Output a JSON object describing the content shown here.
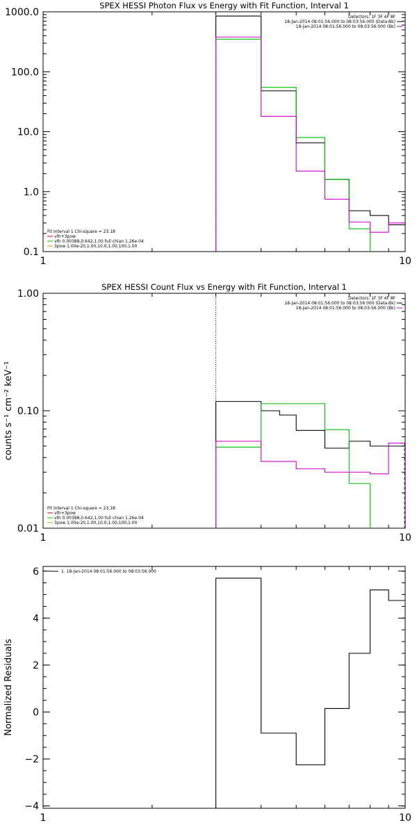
{
  "chart_data": [
    {
      "type": "line",
      "title": "SPEX HESSI Photon Flux vs Energy with Fit Function, Interval 1",
      "xlabel": "",
      "ylabel": "",
      "xscale": "log",
      "yscale": "log",
      "xlim": [
        1,
        10
      ],
      "ylim": [
        0.1,
        1000
      ],
      "xticks": [
        {
          "v": 1,
          "label": "1"
        },
        {
          "v": 10,
          "label": "10"
        }
      ],
      "yticks": [
        {
          "v": 0.1,
          "label": "0.1"
        },
        {
          "v": 1,
          "label": "1.0"
        },
        {
          "v": 10,
          "label": "10.0"
        },
        {
          "v": 100,
          "label": "100.0"
        },
        {
          "v": 1000,
          "label": "1000.0"
        }
      ],
      "legend_top": [
        {
          "text": "Detectors: 1F 3F 4F 8F",
          "color": null
        },
        {
          "text": "18-Jan-2014 08:01:56.000 to 08:03:56.000 (Data-Bk)",
          "color": "#000000"
        },
        {
          "text": "18-Jan-2014 08:01:56.000 to 08:03:56.000 (Bk)",
          "color": "#d000d0"
        }
      ],
      "legend_bottom": [
        {
          "text": "Fit Interval 1   Chi-square = 23.18",
          "color": null
        },
        {
          "text": "vth+3pow",
          "color": "#d00000"
        },
        {
          "text": "vth 0.00388,0.642,1.00   full chian 1.26e-04",
          "color": "#00c000"
        },
        {
          "text": "3pow 1.00e-20,1.00,10.0,1.00,100,1.00",
          "color": "#c0a000"
        }
      ],
      "vline": 3,
      "series": [
        {
          "color": "#000000",
          "edges": [
            3,
            4,
            5,
            6,
            7,
            8,
            9,
            10
          ],
          "values": [
            850,
            48,
            6.5,
            1.6,
            0.48,
            0.4,
            0.28
          ]
        },
        {
          "color": "#00c000",
          "edges": [
            3,
            4,
            5,
            6,
            7,
            8
          ],
          "values": [
            350,
            55,
            8,
            1.6,
            0.24
          ],
          "drop_end": true
        },
        {
          "color": "#d000d0",
          "edges": [
            3,
            4,
            5,
            6,
            7,
            8,
            9,
            10
          ],
          "values": [
            380,
            18,
            2.2,
            0.75,
            0.31,
            0.21,
            0.3
          ]
        }
      ]
    },
    {
      "type": "line",
      "title": "SPEX HESSI Count Flux vs Energy with Fit Function, Interval 1",
      "xlabel": "",
      "ylabel": "counts s⁻¹ cm⁻² keV⁻¹",
      "xscale": "log",
      "yscale": "log",
      "xlim": [
        1,
        10
      ],
      "ylim": [
        0.01,
        1
      ],
      "xticks": [
        {
          "v": 1,
          "label": "1"
        },
        {
          "v": 10,
          "label": "10"
        }
      ],
      "yticks": [
        {
          "v": 0.01,
          "label": "0.01"
        },
        {
          "v": 0.1,
          "label": "0.10"
        },
        {
          "v": 1,
          "label": "1.00"
        }
      ],
      "legend_top": [
        {
          "text": "Detectors: 1F 3F 4F 8F",
          "color": null
        },
        {
          "text": "18-Jan-2014 08:01:56.000 to 08:03:56.000 (Data-Bk)",
          "color": "#000000"
        },
        {
          "text": "18-Jan-2014 08:01:56.000 to 08:03:56.000 (Bk)",
          "color": "#d000d0"
        }
      ],
      "legend_bottom": [
        {
          "text": "Fit Interval 1   Chi-square = 23.18",
          "color": null
        },
        {
          "text": "vth+3pow",
          "color": "#d00000"
        },
        {
          "text": "vth 0.00388,0.642,1.00   full chian 1.26e-04",
          "color": "#00c000"
        },
        {
          "text": "3pow 1.00e-20,1.00,10.0,1.00,100,1.00",
          "color": "#c0a000"
        }
      ],
      "vline": 3,
      "series": [
        {
          "color": "#000000",
          "edges": [
            3,
            4,
            4.5,
            5,
            6,
            7,
            8,
            9,
            10
          ],
          "values": [
            0.12,
            0.1,
            0.092,
            0.068,
            0.048,
            0.055,
            0.05,
            0.05
          ]
        },
        {
          "color": "#00c000",
          "edges": [
            3,
            4,
            5,
            6,
            7,
            8
          ],
          "values": [
            0.049,
            0.115,
            0.115,
            0.069,
            0.024
          ],
          "drop_end": true
        },
        {
          "color": "#d000d0",
          "edges": [
            3,
            4,
            5,
            6,
            7,
            8,
            9,
            10
          ],
          "values": [
            0.055,
            0.037,
            0.032,
            0.03,
            0.03,
            0.029,
            0.053
          ],
          "dashed_end": true
        }
      ]
    },
    {
      "type": "line",
      "title": "",
      "xlabel": "",
      "ylabel": "Normalized Residuals",
      "xscale": "log",
      "yscale": "linear",
      "xlim": [
        1,
        10
      ],
      "ylim": [
        -4.1,
        6.2
      ],
      "xticks": [
        {
          "v": 1,
          "label": "1"
        },
        {
          "v": 10,
          "label": "10"
        }
      ],
      "yticks": [
        {
          "v": -4,
          "label": "−4"
        },
        {
          "v": -2,
          "label": "−2"
        },
        {
          "v": 0,
          "label": "0"
        },
        {
          "v": 2,
          "label": "2"
        },
        {
          "v": 4,
          "label": "4"
        },
        {
          "v": 6,
          "label": "6"
        }
      ],
      "legend_top": [
        {
          "text": "1. 18-Jan-2014 08:01:56.000 to 08:03:56.000",
          "color": "#000000",
          "swatch_left": true
        }
      ],
      "legend_bottom": [],
      "series": [
        {
          "color": "#000000",
          "edges": [
            3,
            4,
            5,
            6,
            7,
            8,
            9,
            10
          ],
          "values": [
            5.7,
            -0.9,
            -2.25,
            0.15,
            2.5,
            5.2,
            4.75
          ],
          "start_from_bottom": true
        }
      ]
    }
  ]
}
